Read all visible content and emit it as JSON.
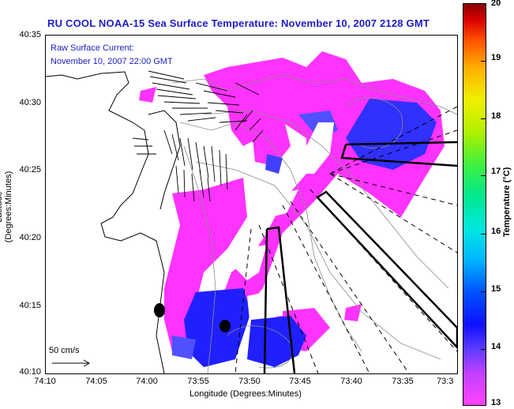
{
  "title": "RU COOL  NOAA-15  Sea Surface Temperature:  November 10, 2007 2128 GMT",
  "current_label": {
    "line1": "Raw Surface Current:",
    "line2": "November 10, 2007 22:00 GMT"
  },
  "scale_label": "50 cm/s",
  "axes": {
    "xlabel": "Longitude (Degrees:Minutes)",
    "ylabel": "Latitude (Degrees:Minutes)",
    "xticks": [
      "74:10",
      "74:05",
      "74:00",
      "73:55",
      "73:50",
      "73:45",
      "73:40",
      "73:35",
      "73:3"
    ],
    "yticks": [
      "40:35",
      "40:30",
      "40:25",
      "40:20",
      "40:15",
      "40:10"
    ]
  },
  "colorbar": {
    "label": "Temperature (°C)",
    "ticks": [
      "20",
      "19",
      "18",
      "17",
      "16",
      "15",
      "14",
      "13"
    ],
    "range": [
      13,
      20
    ]
  },
  "colors": {
    "title": "#1c1cc8",
    "sst_warm_magenta": "#ff33ff",
    "sst_cool_blue": "#2020ff"
  },
  "icons": {
    "current_vectors": "arrow-icon",
    "station_markers": "filled-circle-icon"
  }
}
